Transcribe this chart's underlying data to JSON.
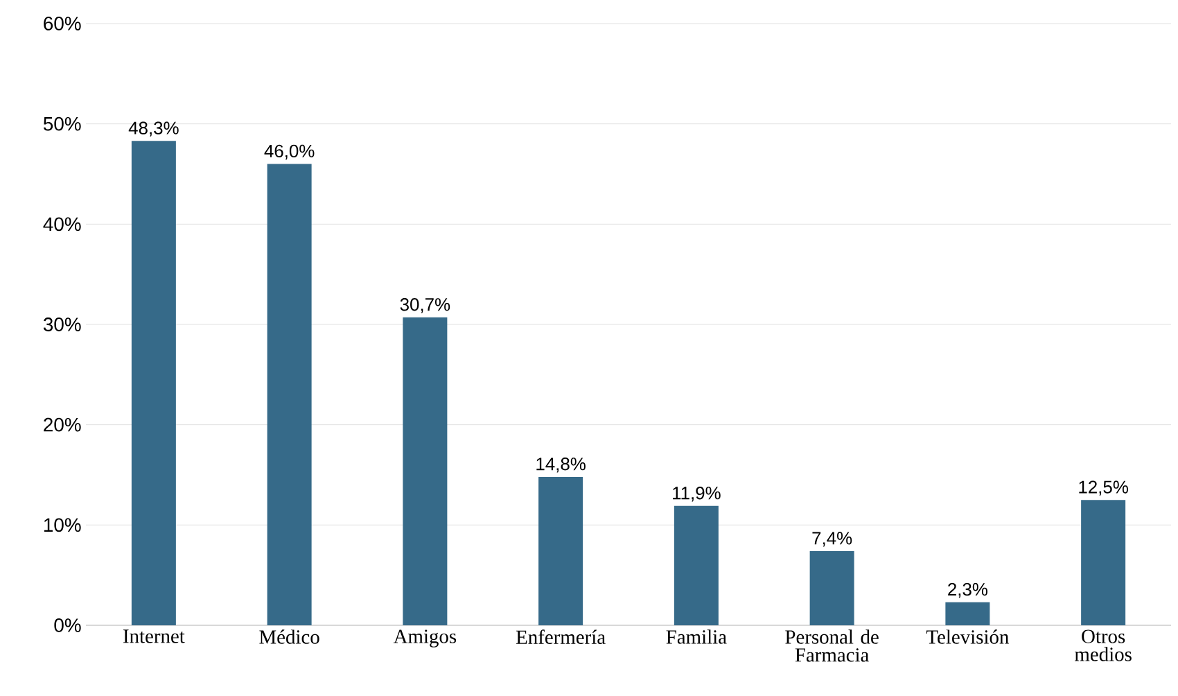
{
  "chart_data": {
    "type": "bar",
    "categories": [
      "Internet",
      "Médico",
      "Amigos",
      "Enfermería",
      "Familia",
      "Personal de Farmacia",
      "Televisión",
      "Otros medios"
    ],
    "values": [
      48.3,
      46.0,
      30.7,
      14.8,
      11.9,
      7.4,
      2.3,
      12.5
    ],
    "value_labels": [
      "48,3%",
      "46,0%",
      "30,7%",
      "14,8%",
      "11,9%",
      "7,4%",
      "2,3%",
      "12,5%"
    ],
    "color": "#366a89",
    "ylim": [
      0,
      60
    ],
    "yticks": [
      {
        "value": 0,
        "label": "0%"
      },
      {
        "value": 10,
        "label": "10%"
      },
      {
        "value": 20,
        "label": "20%"
      },
      {
        "value": 30,
        "label": "30%"
      },
      {
        "value": 40,
        "label": "40%"
      },
      {
        "value": 50,
        "label": "50%"
      },
      {
        "value": 60,
        "label": "60%"
      }
    ],
    "grid": "y"
  }
}
